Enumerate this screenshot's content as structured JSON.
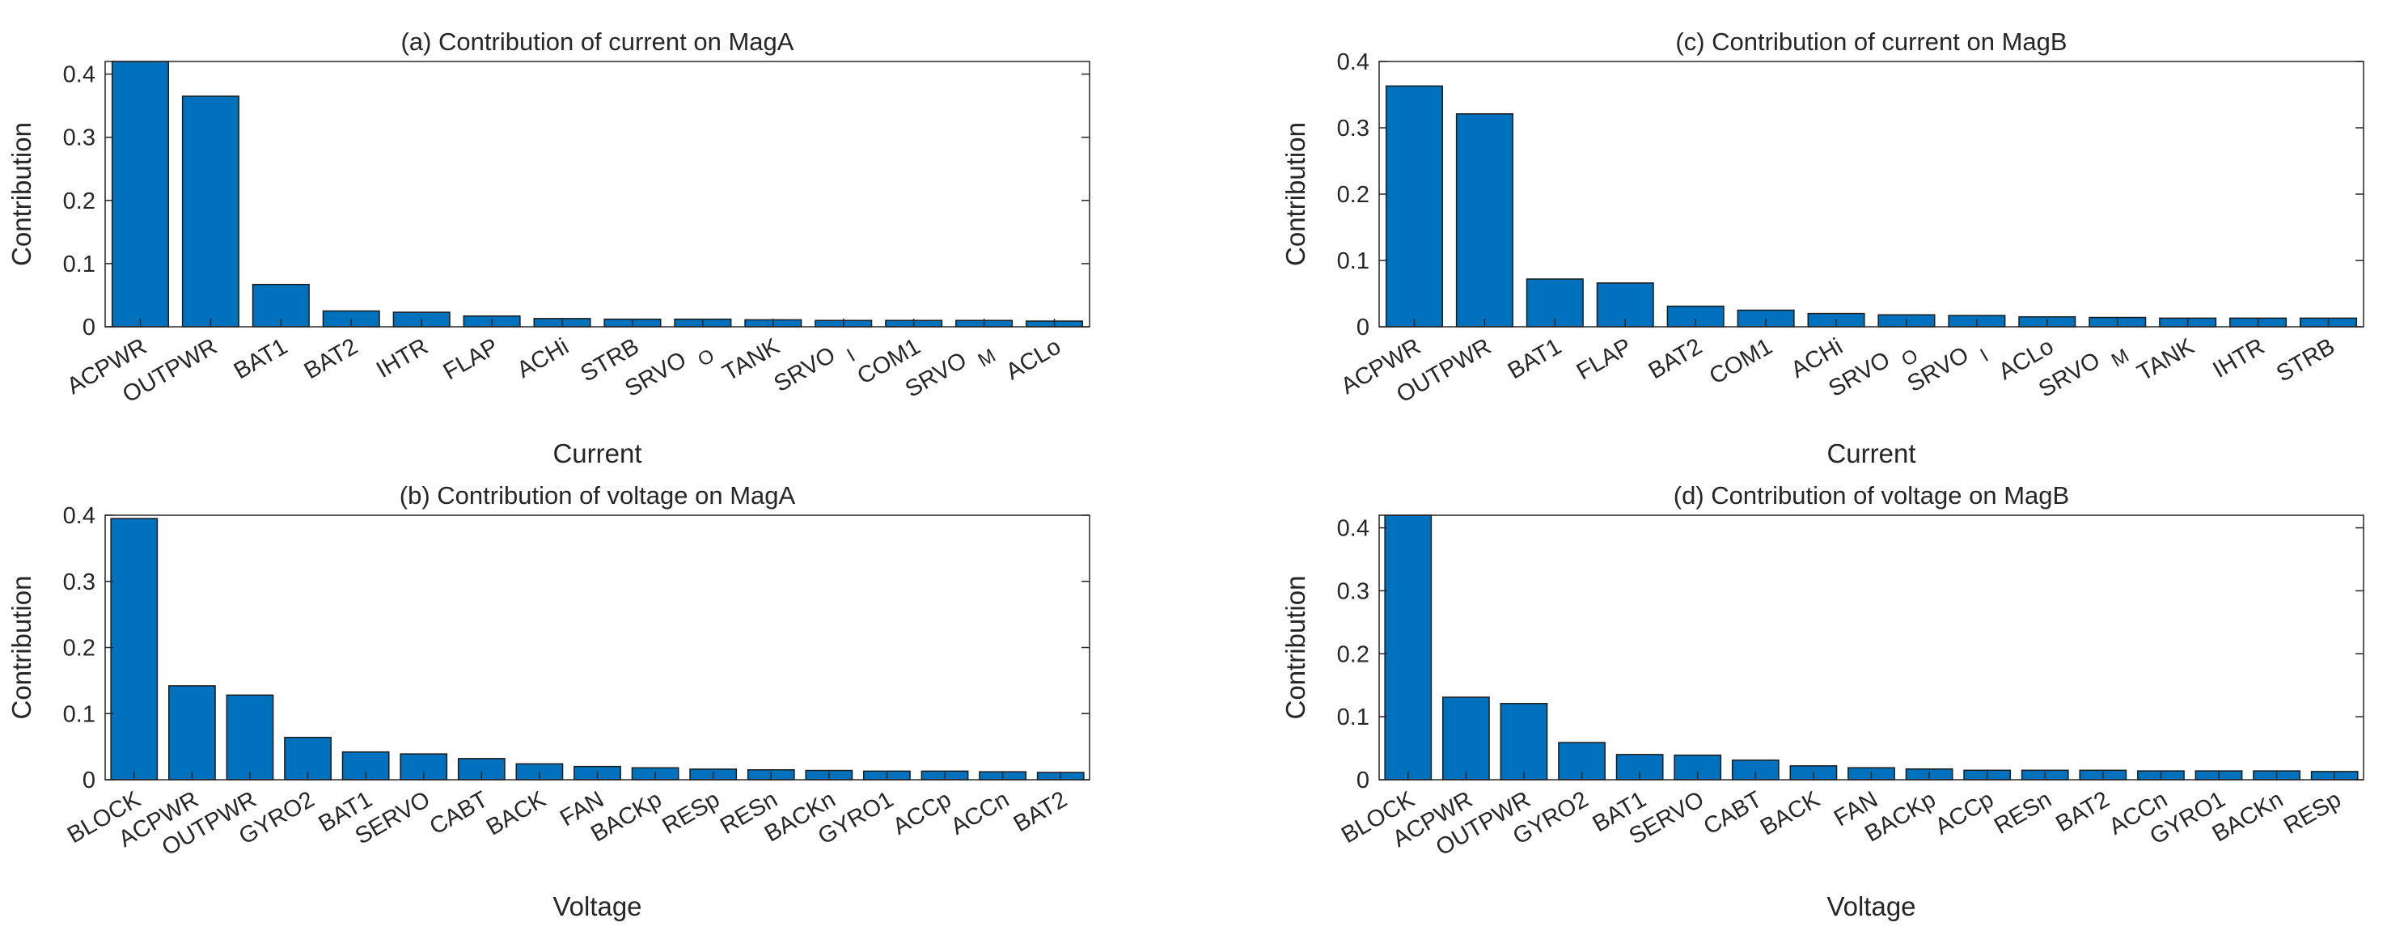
{
  "colors": {
    "bar": "#0072BD",
    "bar_edge": "#1a1a1a",
    "axis": "#262626",
    "background": "#ffffff"
  },
  "chart_data": [
    {
      "id": "a",
      "type": "bar",
      "title": "(a) Contribution of current on MagA",
      "xlabel": "Current",
      "ylabel": "Contribution",
      "ylim": [
        0,
        0.42
      ],
      "yticks": [
        0,
        0.1,
        0.2,
        0.3,
        0.4
      ],
      "ytick_labels": [
        "0",
        "0.1",
        "0.2",
        "0.3",
        "0.4"
      ],
      "grid": false,
      "legend": "none",
      "categories": [
        "ACPWR",
        "OUTPWR",
        "BAT1",
        "BAT2",
        "IHTR",
        "FLAP",
        "ACHi",
        "STRB",
        "SRVO",
        "TANK",
        "SRVO",
        "COM1",
        "SRVO",
        "ACLo"
      ],
      "category_subscripts": [
        "",
        "",
        "",
        "",
        "",
        "",
        "",
        "",
        "O",
        "",
        "I",
        "",
        "M",
        ""
      ],
      "values": [
        0.42,
        0.365,
        0.067,
        0.025,
        0.023,
        0.017,
        0.013,
        0.012,
        0.012,
        0.011,
        0.01,
        0.01,
        0.01,
        0.009
      ]
    },
    {
      "id": "b",
      "type": "bar",
      "title": "(b) Contribution of voltage on MagA",
      "xlabel": "Voltage",
      "ylabel": "Contribution",
      "ylim": [
        0,
        0.4
      ],
      "yticks": [
        0,
        0.1,
        0.2,
        0.3,
        0.4
      ],
      "ytick_labels": [
        "0",
        "0.1",
        "0.2",
        "0.3",
        "0.4"
      ],
      "grid": false,
      "legend": "none",
      "categories": [
        "BLOCK",
        "ACPWR",
        "OUTPWR",
        "GYRO2",
        "BAT1",
        "SERVO",
        "CABT",
        "BACK",
        "FAN",
        "BACKp",
        "RESp",
        "RESn",
        "BACKn",
        "GYRO1",
        "ACCp",
        "ACCn",
        "BAT2"
      ],
      "category_subscripts": [
        "",
        "",
        "",
        "",
        "",
        "",
        "",
        "",
        "",
        "",
        "",
        "",
        "",
        "",
        "",
        "",
        ""
      ],
      "values": [
        0.395,
        0.142,
        0.128,
        0.064,
        0.042,
        0.039,
        0.032,
        0.024,
        0.02,
        0.018,
        0.016,
        0.015,
        0.014,
        0.013,
        0.013,
        0.012,
        0.011
      ]
    },
    {
      "id": "c",
      "type": "bar",
      "title": "(c) Contribution of current on MagB",
      "xlabel": "Current",
      "ylabel": "Contribution",
      "ylim": [
        0,
        0.4
      ],
      "yticks": [
        0,
        0.1,
        0.2,
        0.3,
        0.4
      ],
      "ytick_labels": [
        "0",
        "0.1",
        "0.2",
        "0.3",
        "0.4"
      ],
      "grid": false,
      "legend": "none",
      "categories": [
        "ACPWR",
        "OUTPWR",
        "BAT1",
        "FLAP",
        "BAT2",
        "COM1",
        "ACHi",
        "SRVO",
        "SRVO",
        "ACLo",
        "SRVO",
        "TANK",
        "IHTR",
        "STRB"
      ],
      "category_subscripts": [
        "",
        "",
        "",
        "",
        "",
        "",
        "",
        "O",
        "I",
        "",
        "M",
        "",
        "",
        ""
      ],
      "values": [
        0.363,
        0.321,
        0.072,
        0.066,
        0.031,
        0.025,
        0.02,
        0.018,
        0.017,
        0.015,
        0.014,
        0.013,
        0.013,
        0.013
      ]
    },
    {
      "id": "d",
      "type": "bar",
      "title": "(d) Contribution of voltage on MagB",
      "xlabel": "Voltage",
      "ylabel": "Contribution",
      "ylim": [
        0,
        0.42
      ],
      "yticks": [
        0,
        0.1,
        0.2,
        0.3,
        0.4
      ],
      "ytick_labels": [
        "0",
        "0.1",
        "0.2",
        "0.3",
        "0.4"
      ],
      "grid": false,
      "legend": "none",
      "categories": [
        "BLOCK",
        "ACPWR",
        "OUTPWR",
        "GYRO2",
        "BAT1",
        "SERVO",
        "CABT",
        "BACK",
        "FAN",
        "BACKp",
        "ACCp",
        "RESn",
        "BAT2",
        "ACCn",
        "GYRO1",
        "BACKn",
        "RESp"
      ],
      "category_subscripts": [
        "",
        "",
        "",
        "",
        "",
        "",
        "",
        "",
        "",
        "",
        "",
        "",
        "",
        "",
        "",
        "",
        ""
      ],
      "values": [
        0.42,
        0.131,
        0.121,
        0.059,
        0.04,
        0.039,
        0.031,
        0.022,
        0.019,
        0.017,
        0.015,
        0.015,
        0.015,
        0.014,
        0.014,
        0.014,
        0.013
      ]
    }
  ]
}
